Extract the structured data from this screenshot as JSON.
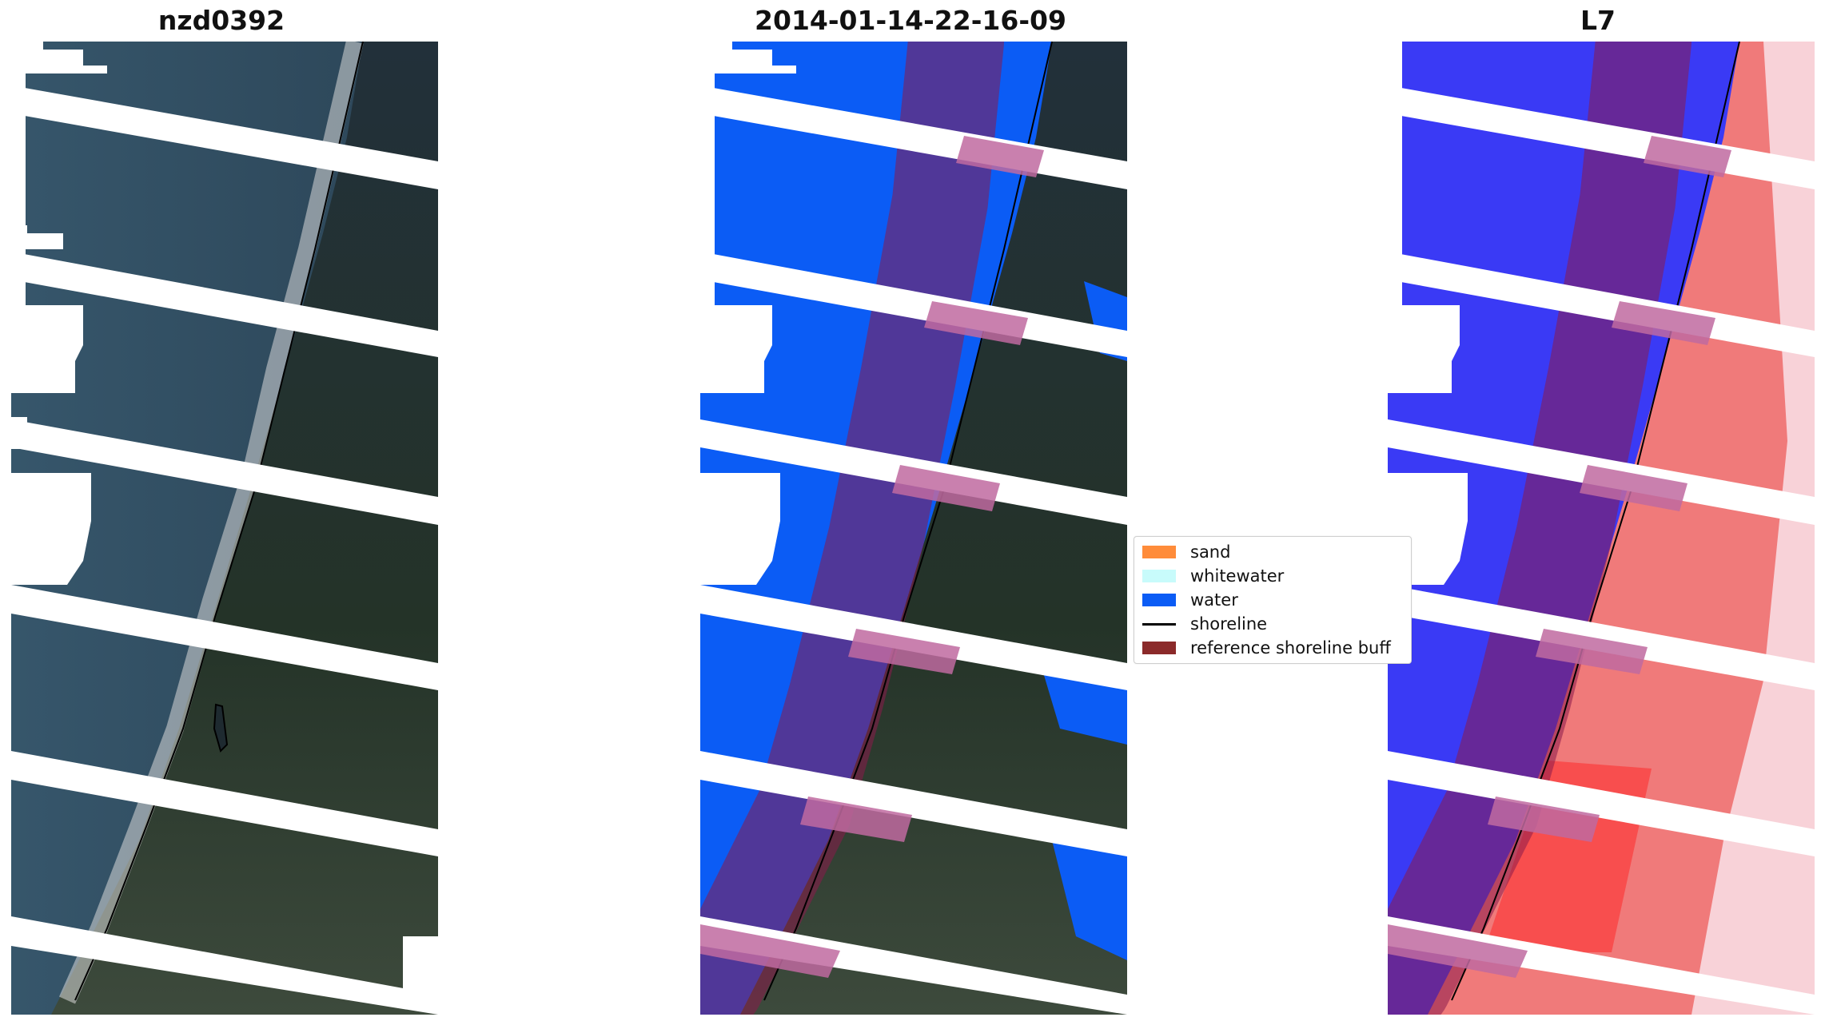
{
  "panels": [
    {
      "title": "nzd0392",
      "icon": "rgb-satellite-image"
    },
    {
      "title": "2014-01-14-22-16-09",
      "icon": "classified-satellite-image"
    },
    {
      "title": "L7",
      "icon": "index-satellite-image"
    }
  ],
  "legend": {
    "items": [
      {
        "label": "sand",
        "color": "#ff8c3a",
        "kind": "patch"
      },
      {
        "label": "whitewater",
        "color": "#c8fbfb",
        "kind": "patch"
      },
      {
        "label": "water",
        "color": "#0b5cf5",
        "kind": "patch"
      },
      {
        "label": "shoreline",
        "color": "#000000",
        "kind": "line"
      },
      {
        "label": "reference shoreline buff",
        "color": "#8b2a2a",
        "kind": "patch"
      }
    ]
  },
  "colors": {
    "ocean_rgb": "#2f4a5f",
    "land_rgb": "#223232",
    "water_class": "#0b5cf5",
    "buffer_overlay": "#8b1a4a",
    "index_blue": "#2d2dff",
    "index_red": "#ff3030"
  }
}
